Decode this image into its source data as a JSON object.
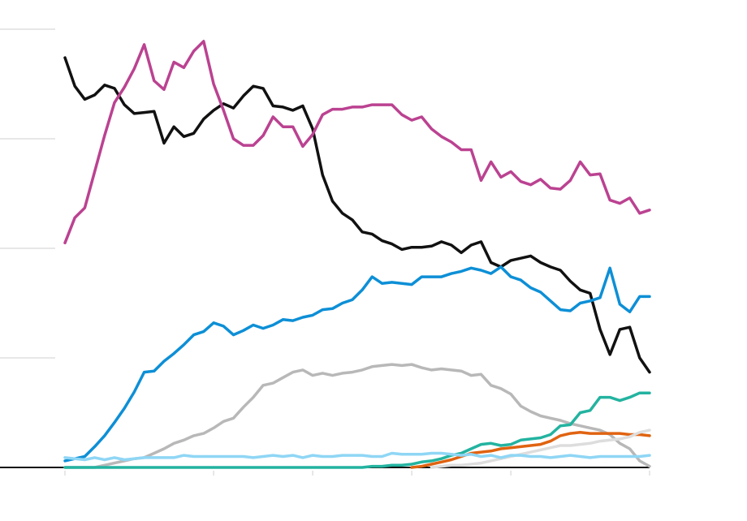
{
  "chart_data": {
    "type": "line",
    "title": "",
    "xlabel": "",
    "ylabel": "",
    "x_ticks_unlabeled": [
      0,
      15,
      25,
      35,
      45,
      59
    ],
    "y_gridlines_unlabeled": [
      0,
      1,
      2,
      3,
      4
    ],
    "ylim": [
      0,
      4.1
    ],
    "xlim": [
      0,
      59
    ],
    "grid": true,
    "legend": "none",
    "series": [
      {
        "color": "#111111",
        "values": [
          3.74,
          3.48,
          3.36,
          3.4,
          3.49,
          3.46,
          3.31,
          3.23,
          3.24,
          3.25,
          2.96,
          3.11,
          3.02,
          3.05,
          3.18,
          3.26,
          3.32,
          3.28,
          3.39,
          3.48,
          3.46,
          3.3,
          3.29,
          3.26,
          3.3,
          3.09,
          2.67,
          2.43,
          2.32,
          2.26,
          2.15,
          2.13,
          2.07,
          2.04,
          1.99,
          2.01,
          2.01,
          2.02,
          2.06,
          2.03,
          1.96,
          2.03,
          2.06,
          1.87,
          1.83,
          1.89,
          1.91,
          1.93,
          1.87,
          1.83,
          1.8,
          1.7,
          1.62,
          1.59,
          1.26,
          1.03,
          1.26,
          1.28,
          1.0,
          0.87
        ]
      },
      {
        "color": "#bb4291",
        "values": [
          2.05,
          2.28,
          2.37,
          2.7,
          3.03,
          3.33,
          3.47,
          3.64,
          3.86,
          3.53,
          3.45,
          3.7,
          3.65,
          3.8,
          3.89,
          3.5,
          3.26,
          3.0,
          2.94,
          2.94,
          3.03,
          3.2,
          3.11,
          3.11,
          2.93,
          3.04,
          3.22,
          3.27,
          3.27,
          3.29,
          3.29,
          3.31,
          3.31,
          3.31,
          3.22,
          3.17,
          3.2,
          3.09,
          3.02,
          2.97,
          2.9,
          2.9,
          2.62,
          2.79,
          2.65,
          2.7,
          2.61,
          2.58,
          2.63,
          2.55,
          2.54,
          2.62,
          2.79,
          2.67,
          2.68,
          2.44,
          2.41,
          2.46,
          2.32,
          2.35
        ]
      },
      {
        "color": "#0d8fd6",
        "values": [
          0.06,
          0.08,
          0.1,
          0.19,
          0.29,
          0.41,
          0.54,
          0.69,
          0.87,
          0.88,
          0.97,
          1.04,
          1.12,
          1.21,
          1.24,
          1.32,
          1.29,
          1.21,
          1.25,
          1.3,
          1.27,
          1.3,
          1.35,
          1.34,
          1.37,
          1.39,
          1.44,
          1.45,
          1.5,
          1.53,
          1.62,
          1.74,
          1.68,
          1.69,
          1.68,
          1.67,
          1.74,
          1.74,
          1.74,
          1.77,
          1.79,
          1.82,
          1.8,
          1.77,
          1.83,
          1.74,
          1.71,
          1.64,
          1.6,
          1.52,
          1.44,
          1.43,
          1.5,
          1.52,
          1.55,
          1.82,
          1.49,
          1.42,
          1.56,
          1.56
        ]
      },
      {
        "color": "#b8b8b8",
        "values": [
          0.0,
          0.0,
          0.0,
          0.0,
          0.02,
          0.04,
          0.06,
          0.08,
          0.09,
          0.13,
          0.17,
          0.22,
          0.25,
          0.29,
          0.31,
          0.36,
          0.42,
          0.45,
          0.55,
          0.64,
          0.75,
          0.77,
          0.82,
          0.87,
          0.89,
          0.84,
          0.86,
          0.84,
          0.86,
          0.87,
          0.89,
          0.92,
          0.93,
          0.94,
          0.93,
          0.94,
          0.91,
          0.89,
          0.9,
          0.89,
          0.88,
          0.84,
          0.85,
          0.75,
          0.72,
          0.67,
          0.56,
          0.51,
          0.47,
          0.45,
          0.43,
          0.4,
          0.38,
          0.36,
          0.34,
          0.3,
          0.22,
          0.17,
          0.06,
          0.01
        ]
      },
      {
        "color": "#23b3a0",
        "values": [
          0.0,
          0.0,
          0.0,
          0.0,
          0.0,
          0.0,
          0.0,
          0.0,
          0.0,
          0.0,
          0.0,
          0.0,
          0.0,
          0.0,
          0.0,
          0.0,
          0.0,
          0.0,
          0.0,
          0.0,
          0.0,
          0.0,
          0.0,
          0.0,
          0.0,
          0.0,
          0.0,
          0.0,
          0.0,
          0.0,
          0.0,
          0.01,
          0.01,
          0.02,
          0.02,
          0.03,
          0.05,
          0.06,
          0.08,
          0.11,
          0.13,
          0.17,
          0.21,
          0.22,
          0.2,
          0.21,
          0.25,
          0.26,
          0.27,
          0.3,
          0.38,
          0.39,
          0.5,
          0.52,
          0.64,
          0.64,
          0.61,
          0.64,
          0.68,
          0.68
        ]
      },
      {
        "color": "#e06311",
        "values": [
          null,
          null,
          null,
          null,
          null,
          null,
          null,
          null,
          null,
          null,
          null,
          null,
          null,
          null,
          null,
          null,
          null,
          null,
          null,
          null,
          null,
          null,
          null,
          null,
          null,
          null,
          null,
          null,
          null,
          null,
          null,
          null,
          null,
          null,
          null,
          0.0,
          0.01,
          0.03,
          0.05,
          0.07,
          0.1,
          0.13,
          0.14,
          0.15,
          0.17,
          0.18,
          0.19,
          0.2,
          0.21,
          0.24,
          0.29,
          0.31,
          0.32,
          0.31,
          0.31,
          0.31,
          0.31,
          0.3,
          0.3,
          0.29
        ]
      },
      {
        "color": "#dddddd",
        "values": [
          null,
          null,
          null,
          null,
          null,
          null,
          null,
          null,
          null,
          null,
          null,
          null,
          null,
          null,
          null,
          null,
          null,
          null,
          null,
          null,
          null,
          null,
          null,
          null,
          null,
          null,
          null,
          null,
          null,
          null,
          null,
          null,
          null,
          null,
          null,
          null,
          null,
          0.0,
          0.01,
          0.02,
          0.02,
          0.03,
          0.04,
          0.06,
          0.08,
          0.1,
          0.12,
          0.14,
          0.16,
          0.18,
          0.2,
          0.2,
          0.21,
          0.22,
          0.24,
          0.25,
          0.26,
          0.28,
          0.32,
          0.34
        ]
      },
      {
        "color": "#8fd6f5",
        "values": [
          0.09,
          0.08,
          0.07,
          0.09,
          0.07,
          0.09,
          0.07,
          0.08,
          0.09,
          0.09,
          0.09,
          0.09,
          0.11,
          0.1,
          0.1,
          0.1,
          0.1,
          0.1,
          0.1,
          0.09,
          0.1,
          0.11,
          0.1,
          0.11,
          0.09,
          0.11,
          0.1,
          0.1,
          0.11,
          0.11,
          0.11,
          0.1,
          0.1,
          0.13,
          0.12,
          0.12,
          0.12,
          0.13,
          0.13,
          0.12,
          0.11,
          0.12,
          0.1,
          0.11,
          0.09,
          0.11,
          0.11,
          0.1,
          0.1,
          0.09,
          0.1,
          0.11,
          0.1,
          0.09,
          0.1,
          0.1,
          0.1,
          0.1,
          0.1,
          0.11
        ]
      }
    ]
  }
}
